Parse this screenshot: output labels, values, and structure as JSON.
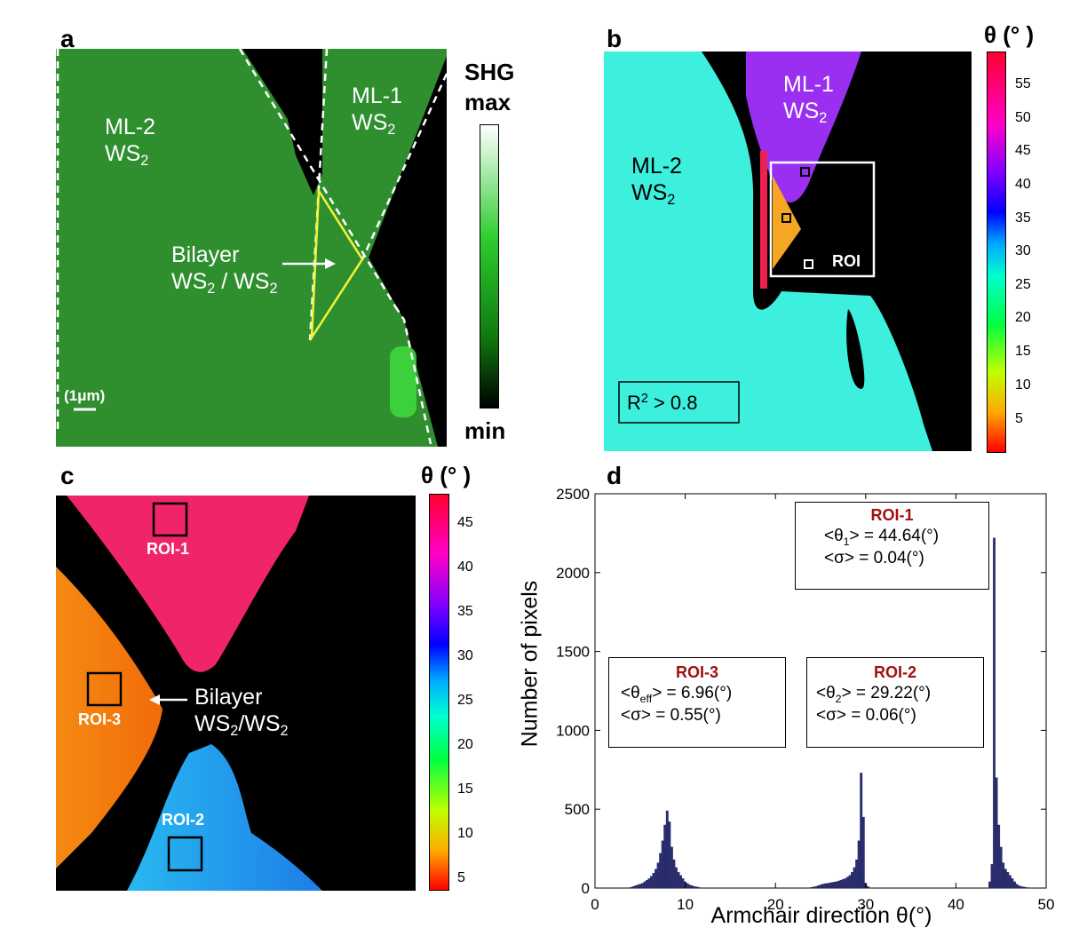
{
  "panel_a": {
    "letter": "a",
    "ml2": [
      "ML-2",
      "WS",
      "2"
    ],
    "ml1": [
      "ML-1",
      "WS",
      "2"
    ],
    "bilayer": [
      "Bilayer",
      "WS",
      "2",
      " / WS",
      "2"
    ],
    "scale": "(1μm)",
    "colorbar": {
      "top1": "SHG",
      "top2": "max",
      "bottom": "min"
    }
  },
  "panel_b": {
    "letter": "b",
    "ml1": [
      "ML-1",
      "WS",
      "2"
    ],
    "ml2": [
      "ML-2",
      "WS",
      "2"
    ],
    "roi": "ROI",
    "r2": [
      "R",
      "2",
      " > 0.8"
    ],
    "colorbar": {
      "title": "θ (° )",
      "ticks": [
        "55",
        "50",
        "45",
        "40",
        "35",
        "30",
        "25",
        "20",
        "15",
        "10",
        "5"
      ]
    }
  },
  "panel_c": {
    "letter": "c",
    "roi1": "ROI-1",
    "roi2": "ROI-2",
    "roi3": "ROI-3",
    "bilayer": [
      "Bilayer",
      "WS",
      "2",
      "/WS",
      "2"
    ],
    "colorbar": {
      "title": "θ (° )",
      "ticks": [
        "45",
        "40",
        "35",
        "30",
        "25",
        "20",
        "15",
        "10",
        "5"
      ]
    }
  },
  "panel_d": {
    "letter": "d",
    "roi1": {
      "title": "ROI-1",
      "l1": [
        "<θ",
        "1",
        "> = 44.64(°)"
      ],
      "l2": "<σ> = 0.04(°)"
    },
    "roi2": {
      "title": "ROI-2",
      "l1": [
        "<θ",
        "2",
        "> = 29.22(°)"
      ],
      "l2": "<σ> = 0.06(°)"
    },
    "roi3": {
      "title": "ROI-3",
      "l1": [
        "<θ",
        "eff",
        "> = 6.96(°)"
      ],
      "l2": "<σ> = 0.55(°)"
    }
  },
  "chart_data": {
    "type": "bar",
    "xlabel": "Armchair direction θ(°)",
    "ylabel": "Number of pixels",
    "xlim": [
      0,
      50
    ],
    "ylim": [
      0,
      2500
    ],
    "xticks": [
      "0",
      "10",
      "20",
      "30",
      "40",
      "50"
    ],
    "yticks": [
      "0",
      "500",
      "1000",
      "1500",
      "2000",
      "2500"
    ],
    "bin_width": 0.25,
    "bar_color": "#2b2f70",
    "x": [
      4.0,
      4.25,
      4.5,
      4.75,
      5.0,
      5.25,
      5.5,
      5.75,
      6.0,
      6.25,
      6.5,
      6.75,
      7.0,
      7.25,
      7.5,
      7.75,
      8.0,
      8.25,
      8.5,
      8.75,
      9.0,
      9.25,
      9.5,
      9.75,
      10.0,
      10.25,
      10.5,
      10.75,
      11.0,
      11.25,
      11.5,
      24.0,
      24.25,
      24.5,
      24.75,
      25.0,
      25.25,
      25.5,
      25.75,
      26.0,
      26.25,
      26.5,
      26.75,
      27.0,
      27.25,
      27.5,
      27.75,
      28.0,
      28.25,
      28.5,
      28.75,
      29.0,
      29.25,
      29.5,
      29.75,
      30.0,
      30.25,
      43.75,
      44.0,
      44.25,
      44.5,
      44.75,
      45.0,
      45.25,
      45.5,
      45.75,
      46.0,
      46.25,
      46.5,
      46.75,
      47.0,
      47.25,
      47.5,
      47.75,
      48.0
    ],
    "y": [
      5,
      10,
      15,
      20,
      25,
      30,
      40,
      50,
      60,
      75,
      95,
      120,
      160,
      220,
      300,
      400,
      490,
      420,
      260,
      180,
      130,
      100,
      80,
      60,
      40,
      30,
      20,
      15,
      10,
      8,
      5,
      5,
      8,
      10,
      15,
      20,
      25,
      28,
      30,
      32,
      35,
      38,
      40,
      45,
      50,
      55,
      60,
      70,
      80,
      100,
      130,
      180,
      300,
      730,
      450,
      30,
      10,
      40,
      150,
      2220,
      700,
      400,
      260,
      160,
      120,
      100,
      80,
      60,
      40,
      25,
      15,
      10,
      8,
      5,
      3
    ]
  }
}
